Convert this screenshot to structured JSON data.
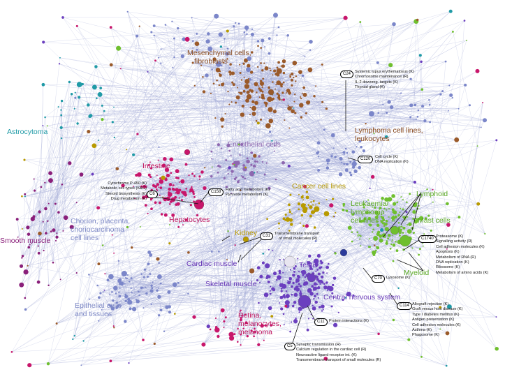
{
  "colors": {
    "edge": "#9ea6d6",
    "mesenchymal": "#8a4b1e",
    "lymphoma": "#8a4b1e",
    "endothelial": "#8e68b0",
    "intestine": "#c0135d",
    "hepatocytes": "#c0135d",
    "cancer": "#b89a00",
    "leukaemia": "#5aa823",
    "lymphoid": "#5aa823",
    "astrocytoma": "#1f9aa6",
    "chorion": "#7f8ac6",
    "smooth": "#8a1f7a",
    "kidney": "#b89a00",
    "cardiac": "#6a3ab8",
    "skeletal": "#6a3ab8",
    "testis": "#6a3ab8",
    "cns": "#6a3ab8",
    "epithelial": "#7f8ac6",
    "retina": "#c0135d",
    "green": "#6fbf2e",
    "purple": "#6b3fbf",
    "magenta": "#c8166b",
    "brown": "#9a5a2a",
    "blue": "#7b86c9"
  },
  "labels": {
    "mesenchymal": [
      "Mesenchymal cells,",
      "fibroblasts"
    ],
    "lymphoma": [
      "Lymphoma cell lines,",
      "leukocytes"
    ],
    "endothelial": "Endothelial cells",
    "astrocytoma": "Astrocytoma",
    "intestine": "Intestine",
    "cancer": "Cancer cell lines",
    "leukaemia": [
      "Leukaemia/",
      "lymphoma",
      "cell lines"
    ],
    "lymphoid": "Lymphoid",
    "mast": "Mast cells",
    "hepatocytes": "Hepatocytes",
    "chorion": [
      "Chorion, placenta,",
      "choriocarcinoma",
      "cell lines"
    ],
    "smooth": "Smooth muscle",
    "kidney": "Kidney",
    "cardiac": "Cardiac muscle",
    "testis": "Testis",
    "myeloid": "Myeloid",
    "skeletal": "Skeletal muscle",
    "cns": "Central nervous system",
    "epithelial": [
      "Epithelial cells",
      "and tissues"
    ],
    "retina": [
      "Retina,",
      "melanocytes,",
      "melanoma"
    ]
  },
  "clusters": {
    "c24": {
      "id": "C24",
      "items": [
        "Systemic lupus erythematosus (K)",
        "Chromosome maintenance (R)",
        "IL-2 downreg. targets (K)",
        "Thyroid gland (K)"
      ]
    },
    "c120": {
      "id": "C120",
      "items": [
        "Cell cycle (K)",
        "DNA replication (K)"
      ]
    },
    "c6": {
      "id": "C6",
      "items": [
        "Cytochrome P-450 (K)",
        "Metabolic cell types (K&G)",
        "Steroid biosynthesis (K)",
        "Drug metabolism (K)"
      ]
    },
    "c158": {
      "id": "C158",
      "items": [
        "Fatty acid metabolism (K)",
        "Pyruvate metabolism (K)"
      ]
    },
    "c31": {
      "id": "C31",
      "items": [
        "Transmembrane transport",
        "of small molecules (R)"
      ]
    },
    "c1740": {
      "id": "C1740",
      "items": [
        "Proteasome (K)",
        "Signalling activity (R)",
        "Cell adhesion molecules (K)",
        "Apoptosis (K)",
        "Metabolism of RNA (R)",
        "DNA replication (K)",
        "Ribosome (K)",
        "Metabolism of amino acids (K)"
      ]
    },
    "c70": {
      "id": "C70",
      "items": [
        "Lysosome (K)"
      ]
    },
    "c114": {
      "id": "C114",
      "items": [
        "Allograft rejection (K)",
        "Graft versus host disease (K)",
        "Type I diabetes mellitus (K)",
        "Antigen presentation (K)",
        "Cell adhesion molecules (K)",
        "Asthma (K)",
        "Phagosome (K)"
      ]
    },
    "c11": {
      "id": "C11",
      "items": [
        "Protein interactions (K)"
      ]
    },
    "c5": {
      "id": "C5",
      "items": [
        "Synaptic transmission (R)",
        "Calcium regulation in the cardiac cell (R)",
        "Neuroactive ligand-receptor int. (K)",
        "Transmembrane transport of small molecules (R)"
      ]
    }
  }
}
